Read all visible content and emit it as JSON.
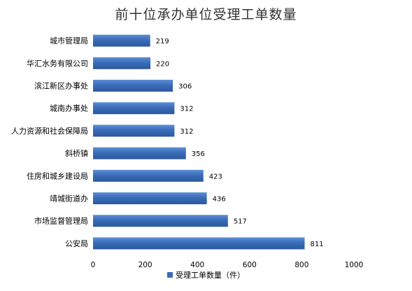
{
  "chart_data": {
    "type": "bar",
    "orientation": "horizontal",
    "title": "前十位承办单位受理工单数量",
    "categories": [
      "城市管理局",
      "华汇水务有限公司",
      "滨江新区办事处",
      "城南办事处",
      "人力资源和社会保障局",
      "斜桥镇",
      "住房和城乡建设局",
      "靖城街道办",
      "市场监督管理局",
      "公安局"
    ],
    "series": [
      {
        "name": "受理工单数量（件）",
        "values": [
          219,
          220,
          306,
          312,
          312,
          356,
          423,
          436,
          517,
          811
        ],
        "color": "#3A6CB8"
      }
    ],
    "xlim": [
      0,
      1000
    ],
    "xticks": [
      0,
      200,
      400,
      600,
      800,
      1000
    ],
    "grid": false,
    "legend_position": "bottom"
  }
}
